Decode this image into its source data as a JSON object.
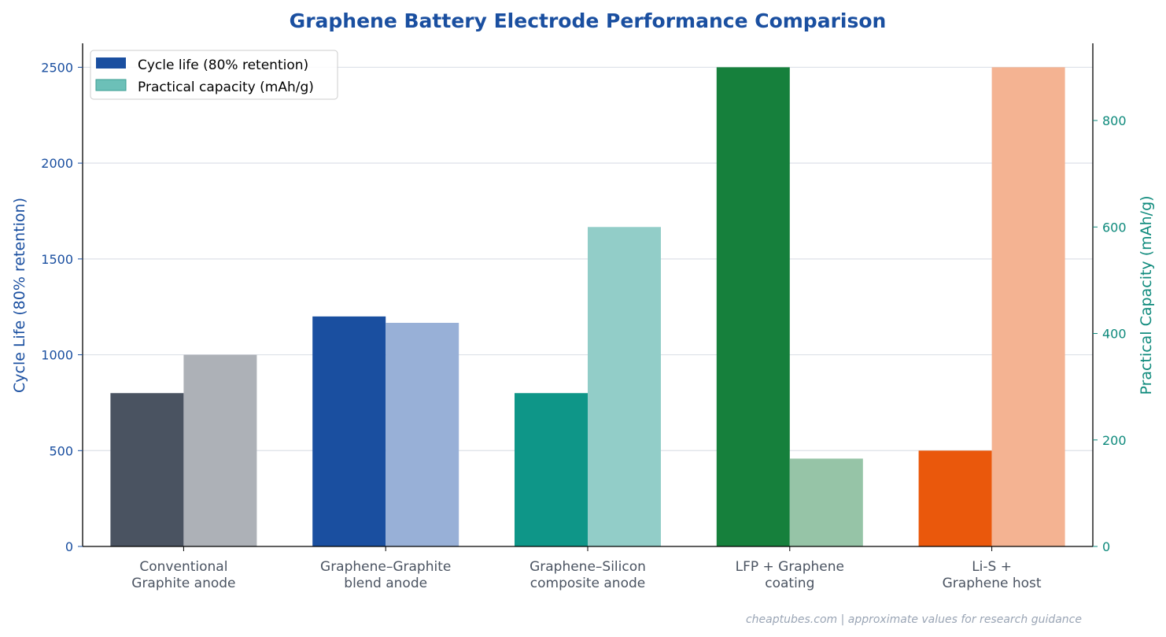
{
  "chart_data": {
    "type": "bar",
    "title": "Graphene Battery Electrode Performance Comparison",
    "categories": [
      [
        "Conventional",
        "Graphite anode"
      ],
      [
        "Graphene–Graphite",
        "blend anode"
      ],
      [
        "Graphene–Silicon",
        "composite anode"
      ],
      [
        "LFP + Graphene",
        "coating"
      ],
      [
        "Li-S +",
        "Graphene host"
      ]
    ],
    "series": [
      {
        "name": "Cycle life (80% retention)",
        "axis": "left",
        "values": [
          800,
          1200,
          800,
          2500,
          500
        ],
        "colors": [
          "#4a5361",
          "#1a4fa0",
          "#0e9688",
          "#16803c",
          "#ea580c"
        ],
        "legend_color": "#1a4fa0"
      },
      {
        "name": "Practical capacity (mAh/g)",
        "axis": "right",
        "values": [
          360,
          420,
          600,
          165,
          900
        ],
        "colors": [
          "#adb1b7",
          "#98b0d7",
          "#92cdc8",
          "#96c4a7",
          "#f4b392"
        ],
        "legend_color": "#6cc0b8"
      }
    ],
    "ylabel": "Cycle Life (80% retention)",
    "ylabel_right": "Practical Capacity (mAh/g)",
    "ylim": [
      0,
      2625
    ],
    "ylim_right": [
      0,
      945
    ],
    "yticks": [
      0,
      500,
      1000,
      1500,
      2000,
      2500
    ],
    "yticks_right": [
      0,
      200,
      400,
      600,
      800
    ],
    "grid": true,
    "legend_position": "top-left",
    "colors": {
      "title": "#1a4fa0",
      "left_axis": "#1a4fa0",
      "right_axis": "#0e8a7c",
      "category_text": "#4a5361"
    },
    "footnote": "cheaptubes.com  |  approximate values for research guidance"
  }
}
